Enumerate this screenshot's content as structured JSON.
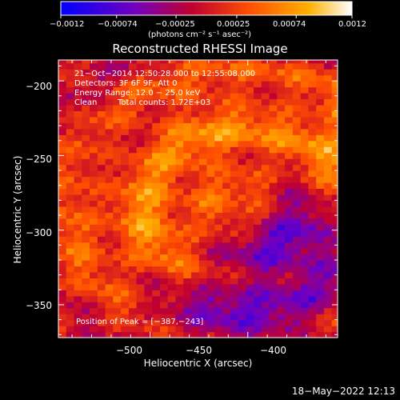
{
  "chart_data": {
    "type": "heatmap",
    "title": "Reconstructed RHESSI Image",
    "xlabel": "Heliocentric X (arcsec)",
    "ylabel": "Heliocentric Y (arcsec)",
    "xlim": [
      -547,
      -404
    ],
    "ylim": [
      -372,
      -186
    ],
    "x_ticks": [
      -500,
      -450,
      -400
    ],
    "y_ticks": [
      -350,
      -300,
      -250,
      -200
    ],
    "x_tick_labels": [
      "−500",
      "−450",
      "−400"
    ],
    "y_tick_labels": [
      "−350",
      "−300",
      "−250",
      "−200"
    ],
    "colorbar": {
      "range": [
        -0.0012,
        0.0012
      ],
      "ticks": [
        -0.0012,
        -0.00074,
        -0.00025,
        0.00025,
        0.00074,
        0.0012
      ],
      "tick_labels": [
        "−0.0012",
        "−0.00074",
        "−0.00025",
        "0.00025",
        "0.00074",
        "0.0012"
      ],
      "units_label": "(photons cm⁻² s⁻¹ asec⁻²)",
      "colors": [
        "#0000ff",
        "#7000c0",
        "#c00030",
        "#ff5000",
        "#ffb000",
        "#ffffff"
      ]
    },
    "grid": false,
    "pixel_size_arcsec": 4,
    "peak_position": [
      -387,
      -243
    ],
    "annotations": {
      "time_range": "21−Oct−2014 12:50:28.000 to 12:55:08.000",
      "detectors": "Detectors: 3F 6F 9F, Att 0",
      "energy_range": "Energy Range: 12.0 − 25.0 keV",
      "clean": "Clean",
      "total_counts": "Total counts: 1.72E+03",
      "peak": "Position of Peak = [−387,−243]"
    }
  },
  "footer": {
    "date_stamp": "18−May−2022 12:13"
  }
}
